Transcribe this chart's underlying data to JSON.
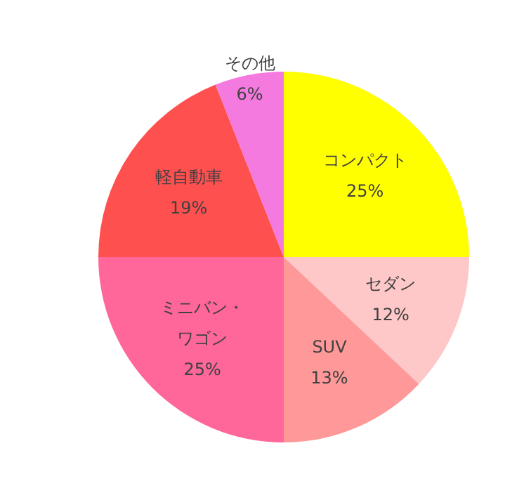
{
  "chart_data": {
    "type": "pie",
    "categories": [
      "コンパクト",
      "セダン",
      "SUV",
      "ミニバン・ワゴン",
      "軽自動車",
      "その他"
    ],
    "values": [
      25,
      12,
      13,
      25,
      19,
      6
    ],
    "colors": [
      "#ffff00",
      "#ffc8c8",
      "#ff9999",
      "#ff6699",
      "#ff5050",
      "#f47ae0"
    ],
    "value_labels": [
      "25%",
      "12%",
      "13%",
      "25%",
      "19%",
      "6%"
    ],
    "legend": false
  }
}
